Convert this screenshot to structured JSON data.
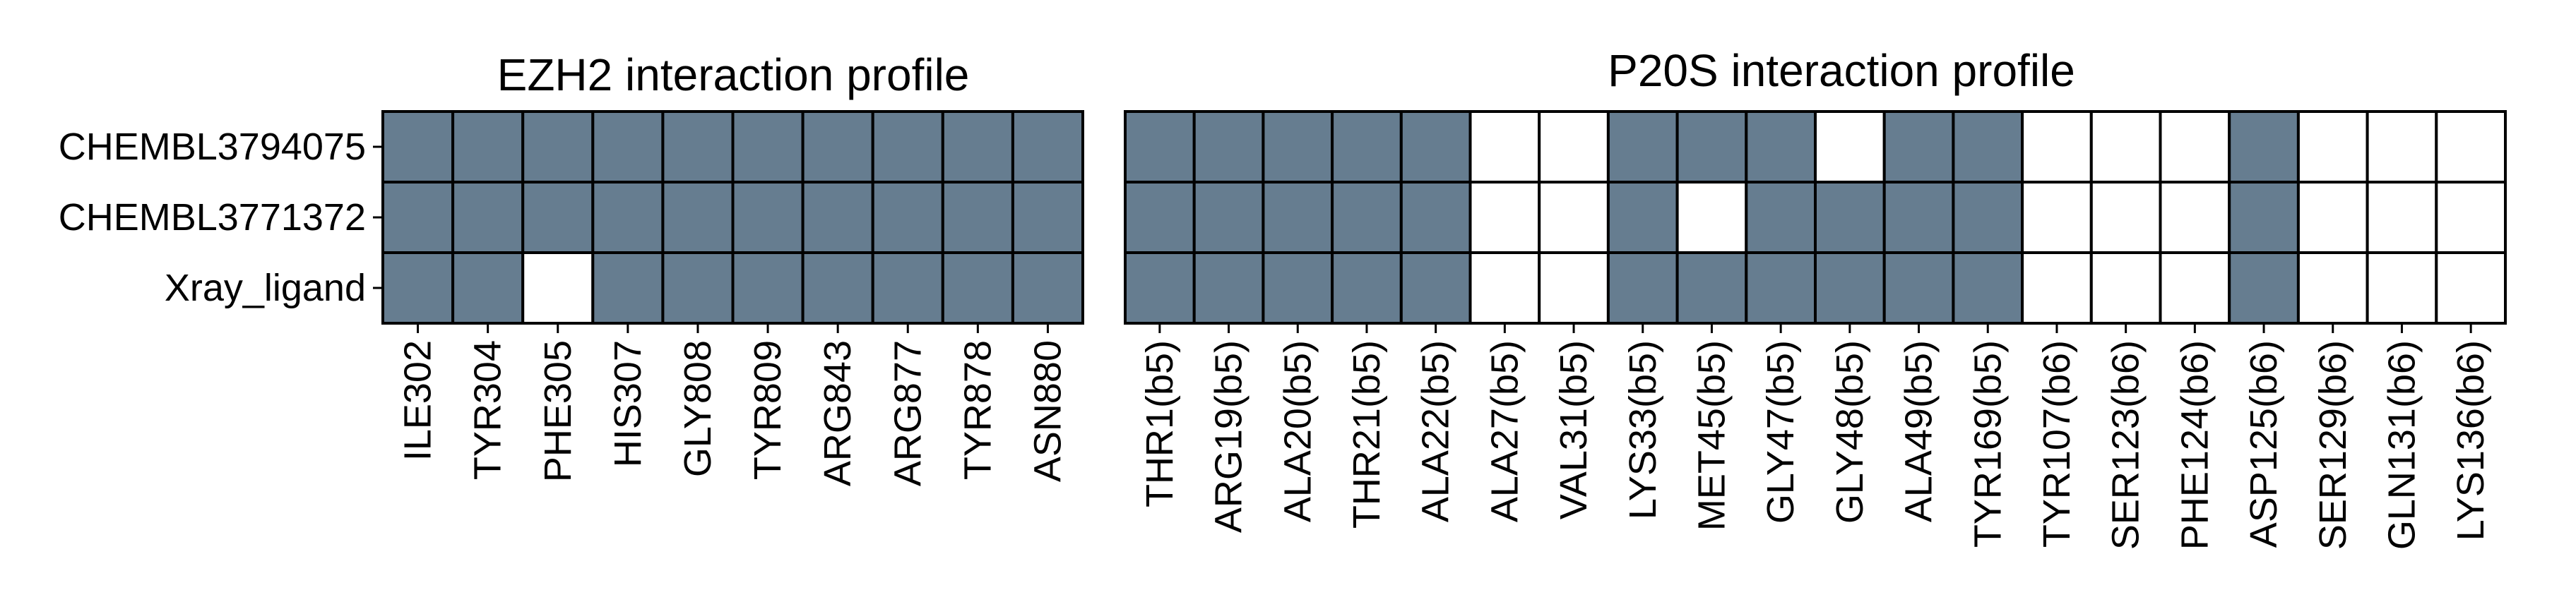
{
  "chart_data": [
    {
      "type": "heatmap",
      "title": "EZH2 interaction profile",
      "rows": [
        "CHEMBL3794075",
        "CHEMBL3771372",
        "Xray_ligand"
      ],
      "columns": [
        "ILE302",
        "TYR304",
        "PHE305",
        "HIS307",
        "GLY808",
        "TYR809",
        "ARG843",
        "ARG877",
        "TYR878",
        "ASN880"
      ],
      "values": [
        [
          1,
          1,
          1,
          1,
          1,
          1,
          1,
          1,
          1,
          1
        ],
        [
          1,
          1,
          1,
          1,
          1,
          1,
          1,
          1,
          1,
          1
        ],
        [
          1,
          1,
          0,
          1,
          1,
          1,
          1,
          1,
          1,
          1
        ]
      ],
      "on_color": "#667d90",
      "off_color": "#ffffff",
      "grid_color": "#000000"
    },
    {
      "type": "heatmap",
      "title": "P20S interaction profile",
      "rows": [
        "CHEMBL3794075",
        "CHEMBL3771372",
        "Xray_ligand"
      ],
      "columns": [
        "THR1(b5)",
        "ARG19(b5)",
        "ALA20(b5)",
        "THR21(b5)",
        "ALA22(b5)",
        "ALA27(b5)",
        "VAL31(b5)",
        "LYS33(b5)",
        "MET45(b5)",
        "GLY47(b5)",
        "GLY48(b5)",
        "ALA49(b5)",
        "TYR169(b5)",
        "TYR107(b6)",
        "SER123(b6)",
        "PHE124(b6)",
        "ASP125(b6)",
        "SER129(b6)",
        "GLN131(b6)",
        "LYS136(b6)"
      ],
      "values": [
        [
          1,
          1,
          1,
          1,
          1,
          0,
          0,
          1,
          1,
          1,
          0,
          1,
          1,
          0,
          0,
          0,
          1,
          0,
          0,
          0
        ],
        [
          1,
          1,
          1,
          1,
          1,
          0,
          0,
          1,
          0,
          1,
          1,
          1,
          1,
          0,
          0,
          0,
          1,
          0,
          0,
          0
        ],
        [
          1,
          1,
          1,
          1,
          1,
          0,
          0,
          1,
          1,
          1,
          1,
          1,
          1,
          0,
          0,
          0,
          1,
          0,
          0,
          0
        ]
      ],
      "on_color": "#667d90",
      "off_color": "#ffffff",
      "grid_color": "#000000"
    }
  ]
}
